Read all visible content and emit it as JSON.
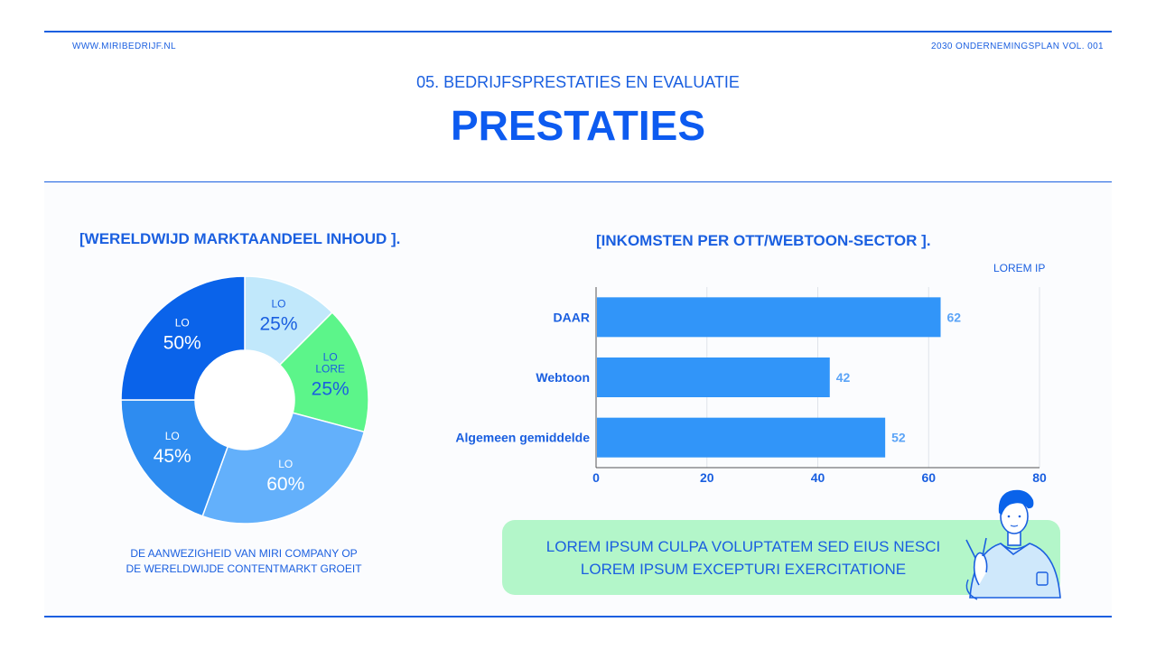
{
  "header": {
    "website": "WWW.MIRIBEDRIJF.NL",
    "plan": "2030 ONDERNEMINGSPLAN VOL. 001",
    "subtitle": "05. BEDRIJFSPRESTATIES EN EVALUATIE",
    "title": "PRESTATIES"
  },
  "pie": {
    "title": "[WERELDWIJD MARKTAANDEEL INHOUD ].",
    "caption_line1": "DE AANWEZIGHEID VAN MIRI COMPANY OP",
    "caption_line2": "DE WERELDWIJDE CONTENTMARKT GROEIT"
  },
  "bar": {
    "title": "[INKOMSTEN PER OTT/WEBTOON-SECTOR ].",
    "legend": "LOREM IP"
  },
  "callout": {
    "line1": "LOREM IPSUM CULPA VOLUPTATEM SED EIUS NESCI",
    "line2": "LOREM IPSUM EXCEPTURI EXERCITATIONE"
  },
  "colors": {
    "primary": "#1a5fe0",
    "title": "#0d5bf0",
    "bar": "#3195f9",
    "callout_bg": "#b3f6c9"
  },
  "chart_data": [
    {
      "type": "pie",
      "variant": "donut",
      "title": "[WERELDWIJD MARKTAANDEEL INHOUD ].",
      "slices": [
        {
          "name": "LO",
          "label": "25%",
          "share_deg": 45,
          "color": "#c1e8fb",
          "text_color": "#1a5fe0"
        },
        {
          "name": "LO LORE",
          "label": "25%",
          "share_deg": 60,
          "color": "#5cf58a",
          "text_color": "#1a5fe0"
        },
        {
          "name": "LO",
          "label": "60%",
          "share_deg": 95,
          "color": "#63b0fb",
          "text_color": "#ffffff"
        },
        {
          "name": "LO",
          "label": "45%",
          "share_deg": 70,
          "color": "#2e8cf0",
          "text_color": "#ffffff"
        },
        {
          "name": "LO",
          "label": "50%",
          "share_deg": 90,
          "color": "#0a63ea",
          "text_color": "#ffffff"
        }
      ]
    },
    {
      "type": "bar",
      "orientation": "horizontal",
      "title": "[INKOMSTEN PER OTT/WEBTOON-SECTOR ].",
      "categories": [
        "DAAR",
        "Webtoon",
        "Algemeen gemiddelde"
      ],
      "series": [
        {
          "name": "LOREM IP",
          "values": [
            62,
            42,
            52
          ]
        }
      ],
      "xlim": [
        0,
        80
      ],
      "ticks": [
        0,
        20,
        40,
        60,
        80
      ],
      "grid": true,
      "legend": "top-right"
    }
  ]
}
